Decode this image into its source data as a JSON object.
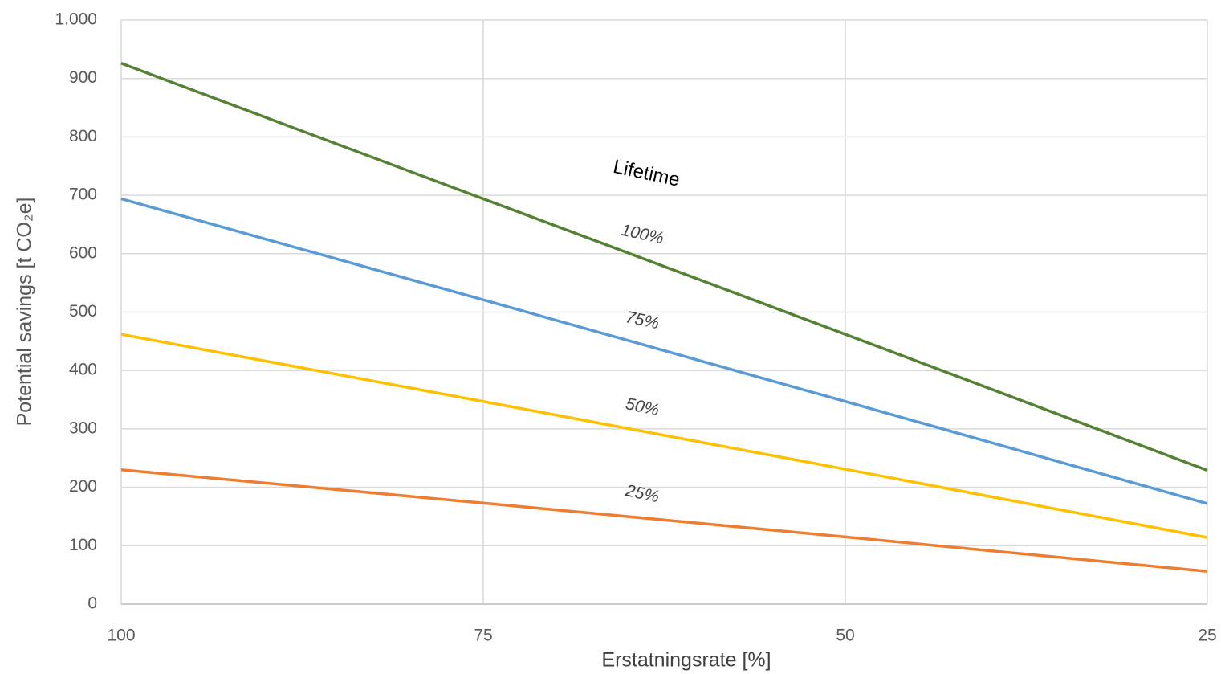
{
  "chart_data": {
    "type": "line",
    "xlabel": "Erstatningsrate [%]",
    "ylabel": "Potential savings [t CO₂e]",
    "legend_title": "Lifetime",
    "x": [
      100,
      75,
      50,
      25
    ],
    "xlim": [
      100,
      25
    ],
    "xticks": [
      100,
      75,
      50,
      25
    ],
    "ylim": [
      0,
      1000
    ],
    "yticks": [
      0,
      100,
      200,
      300,
      400,
      500,
      600,
      700,
      800,
      900,
      {
        "value": 1000,
        "label": "1.000"
      }
    ],
    "grid": true,
    "series": [
      {
        "name": "100%",
        "color": "#548235",
        "values": [
          926,
          694,
          462,
          229
        ]
      },
      {
        "name": "75%",
        "color": "#5b9bd5",
        "values": [
          694,
          521,
          347,
          172
        ]
      },
      {
        "name": "50%",
        "color": "#ffc000",
        "values": [
          462,
          347,
          231,
          114
        ]
      },
      {
        "name": "25%",
        "color": "#ed7d31",
        "values": [
          230,
          173,
          115,
          56
        ]
      }
    ]
  }
}
